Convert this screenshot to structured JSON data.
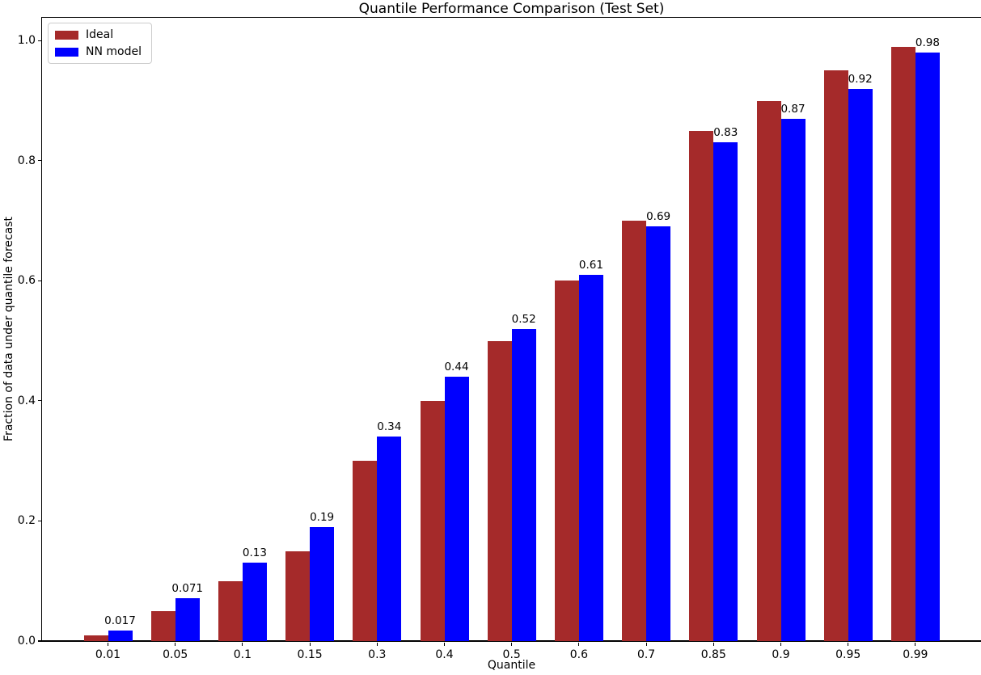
{
  "title": "Quantile Performance Comparison (Test Set)",
  "chart_data": {
    "type": "bar",
    "title": "Quantile Performance Comparison (Test Set)",
    "xlabel": "Quantile",
    "ylabel": "Fraction of data under quantile forecast",
    "categories": [
      "0.01",
      "0.05",
      "0.1",
      "0.15",
      "0.3",
      "0.4",
      "0.5",
      "0.6",
      "0.7",
      "0.85",
      "0.9",
      "0.95",
      "0.99"
    ],
    "series": [
      {
        "name": "Ideal",
        "color": "#A52A2A",
        "values": [
          0.01,
          0.05,
          0.1,
          0.15,
          0.3,
          0.4,
          0.5,
          0.6,
          0.7,
          0.85,
          0.9,
          0.95,
          0.99
        ]
      },
      {
        "name": "NN model",
        "color": "#0000FF",
        "values": [
          0.017,
          0.071,
          0.13,
          0.19,
          0.34,
          0.44,
          0.52,
          0.61,
          0.69,
          0.83,
          0.87,
          0.92,
          0.98
        ],
        "bar_labels": [
          "0.017",
          "0.071",
          "0.13",
          "0.19",
          "0.34",
          "0.44",
          "0.52",
          "0.61",
          "0.69",
          "0.83",
          "0.87",
          "0.92",
          "0.98"
        ]
      }
    ],
    "ytick_values": [
      0,
      0.2,
      0.4,
      0.6,
      0.8,
      1.0
    ],
    "ytick_labels": [
      "0.0",
      "0.2",
      "0.4",
      "0.6",
      "0.8",
      "1.0"
    ],
    "ylim": [
      0,
      1.038
    ],
    "grid": false,
    "legend_position": "upper left",
    "bar_label_series": "NN model",
    "text_color": "#000000",
    "background_color": "#ffffff"
  }
}
